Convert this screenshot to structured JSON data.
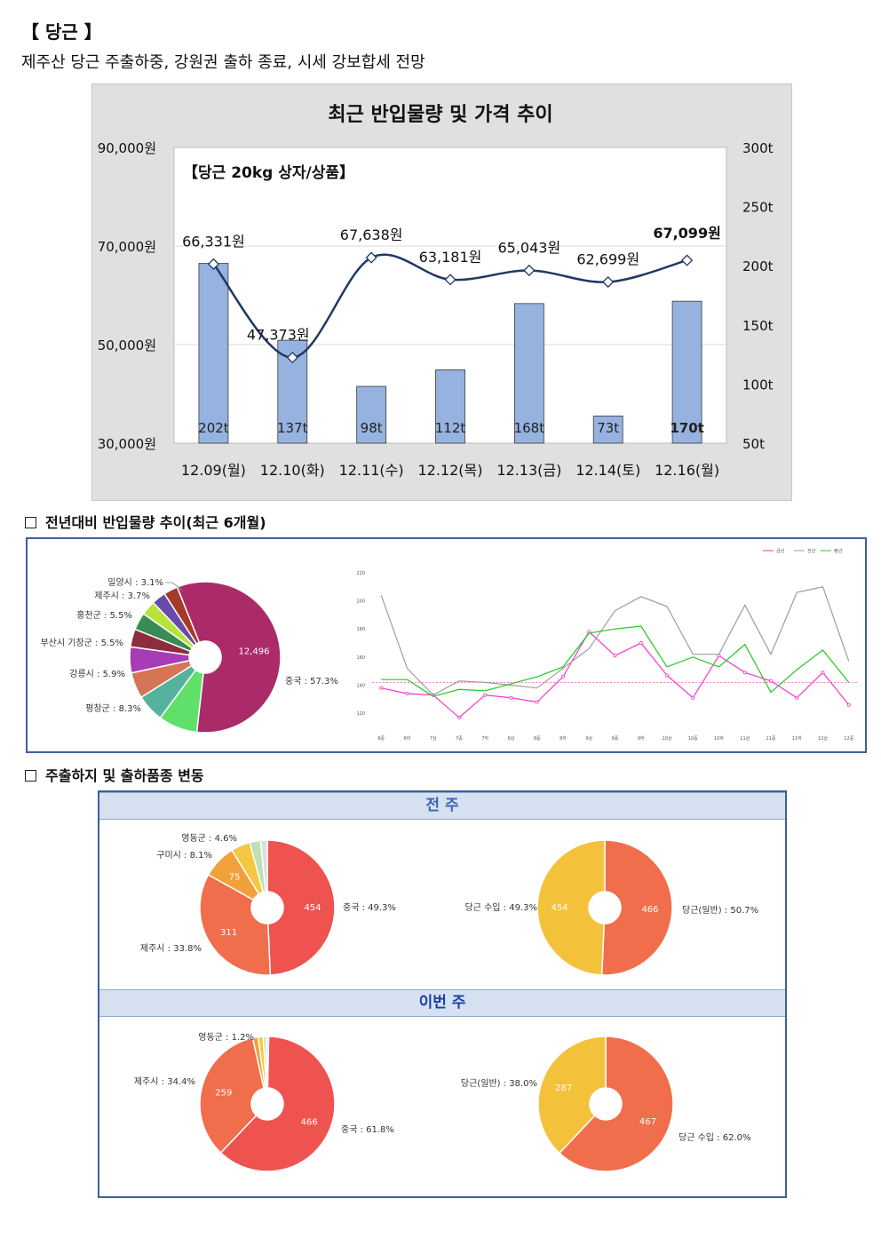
{
  "header": {
    "title": "【 당근 】",
    "subtitle": "제주산 당근 주출하중, 강원권 출하 종료, 시세 강보합세 전망"
  },
  "sections": {
    "trend": "전년대비 반입물량 추이(최근 6개월)",
    "shipping": "주출하지 및 출하품종 변동",
    "prev_week": "전 주",
    "this_week": "이번 주"
  },
  "chart_data": [
    {
      "type": "bar+line",
      "title": "최근 반입물량 및 가격 추이",
      "subtitle": "【당근 20kg 상자/상품】",
      "categories": [
        "12.09(월)",
        "12.10(화)",
        "12.11(수)",
        "12.12(목)",
        "12.13(금)",
        "12.14(토)",
        "12.16(월)"
      ],
      "series": [
        {
          "axis": "right",
          "type": "bar",
          "values": [
            202,
            137,
            98,
            112,
            168,
            73,
            170
          ],
          "labels": [
            "202t",
            "137t",
            "98t",
            "112t",
            "168t",
            "73t",
            "170t"
          ],
          "color": "#95b3de"
        },
        {
          "axis": "left",
          "type": "line",
          "values": [
            66331,
            47373,
            67638,
            63181,
            65043,
            62699,
            67099
          ],
          "labels": [
            "66,331원",
            "47,373원",
            "67,638원",
            "63,181원",
            "65,043원",
            "62,699원",
            "67,099원"
          ],
          "color": "#1f3864"
        }
      ],
      "left_axis": {
        "ticks": [
          "90,000원",
          "70,000원",
          "50,000원",
          "30,000원"
        ],
        "range": [
          30000,
          90000
        ]
      },
      "right_axis": {
        "ticks": [
          "300t",
          "250t",
          "200t",
          "150t",
          "100t",
          "50t"
        ],
        "range": [
          50,
          300
        ]
      },
      "grid": true
    },
    {
      "type": "pie",
      "slices": [
        {
          "label": "중국 : 57.3%",
          "value": 57.3,
          "inner": "12,496",
          "color": "#ab2a68"
        },
        {
          "label": "평창군 : 8.3%",
          "value": 8.3,
          "color": "#5fe06a"
        },
        {
          "label": "강릉시 : 5.9%",
          "value": 5.9,
          "color": "#55b29d"
        },
        {
          "label": "부산시 기장군 : 5.5%",
          "value": 5.5,
          "color": "#d67456"
        },
        {
          "label": "홍천군 : 5.5%",
          "value": 5.5,
          "color": "#a73db5"
        },
        {
          "label": "",
          "value": 3.8,
          "color": "#8e2c3f"
        },
        {
          "label": "제주시 : 3.7%",
          "value": 3.7,
          "color": "#3b8b54"
        },
        {
          "label": "밀양시 : 3.1%",
          "value": 3.1,
          "color": "#b6e33a"
        },
        {
          "label": "",
          "value": 3.0,
          "color": "#6a4aa8"
        },
        {
          "label": "",
          "value": 3.0,
          "color": "#a63a2a"
        }
      ]
    },
    {
      "type": "line",
      "legend": [
        "금년",
        "전년",
        "평년"
      ],
      "legend_position": "top-right",
      "categories": [
        "6중",
        "6하",
        "7상",
        "7중",
        "7하",
        "8상",
        "8중",
        "8하",
        "9상",
        "9중",
        "9하",
        "10상",
        "10중",
        "10하",
        "11상",
        "11중",
        "11하",
        "12상",
        "12중"
      ],
      "y_ticks": [
        "220",
        "200",
        "180",
        "160",
        "140",
        "120"
      ],
      "ylim": [
        110,
        225
      ],
      "series": [
        {
          "name": "금년",
          "color": "#ff33cc",
          "values": [
            138,
            134,
            133,
            117,
            133,
            131,
            128,
            146,
            178,
            161,
            170,
            147,
            131,
            161,
            149,
            143,
            131,
            149,
            126
          ]
        },
        {
          "name": "전년",
          "color": "#9e9e9e",
          "values": [
            204,
            152,
            133,
            143,
            142,
            140,
            138,
            152,
            166,
            193,
            203,
            196,
            162,
            162,
            197,
            162,
            206,
            210,
            157
          ]
        },
        {
          "name": "평년",
          "color": "#22c922",
          "values": [
            144,
            144,
            132,
            137,
            136,
            141,
            146,
            153,
            177,
            180,
            182,
            153,
            160,
            153,
            169,
            135,
            151,
            165,
            142
          ]
        }
      ],
      "reference_line": 142
    },
    {
      "type": "pie",
      "panel": "전 주",
      "slices": [
        {
          "label": "중국 : 49.3%",
          "value": 49.3,
          "inner": "454",
          "color": "#ef5350"
        },
        {
          "label": "제주시 : 33.8%",
          "value": 33.8,
          "inner": "311",
          "color": "#f06e4c"
        },
        {
          "label": "구미시 : 8.1%",
          "value": 8.1,
          "inner": "75",
          "color": "#f1a03a"
        },
        {
          "label": "영동군 : 4.6%",
          "value": 4.6,
          "color": "#f4c842"
        },
        {
          "label": "",
          "value": 2.6,
          "color": "#bfe0b2"
        },
        {
          "label": "",
          "value": 1.6,
          "color": "#dddddd"
        }
      ]
    },
    {
      "type": "pie",
      "panel": "전 주",
      "slices": [
        {
          "label": "당근(일반) : 50.7%",
          "value": 50.7,
          "inner": "466",
          "color": "#f06e4c"
        },
        {
          "label": "당근 수입 : 49.3%",
          "value": 49.3,
          "inner": "454",
          "color": "#f4c13a"
        }
      ]
    },
    {
      "type": "pie",
      "panel": "이번 주",
      "slices": [
        {
          "label": "중국 : 61.8%",
          "value": 61.8,
          "inner": "466",
          "color": "#ef5350"
        },
        {
          "label": "제주시 : 34.4%",
          "value": 34.4,
          "inner": "259",
          "color": "#f06e4c"
        },
        {
          "label": "",
          "value": 1.3,
          "color": "#f1a03a"
        },
        {
          "label": "영동군 : 1.2%",
          "value": 1.2,
          "color": "#f4c842"
        },
        {
          "label": "",
          "value": 0.7,
          "color": "#bfe0b2"
        },
        {
          "label": "",
          "value": 0.6,
          "color": "#dddddd"
        }
      ]
    },
    {
      "type": "pie",
      "panel": "이번 주",
      "slices": [
        {
          "label": "당근 수입 : 62.0%",
          "value": 62.0,
          "inner": "467",
          "color": "#f06e4c"
        },
        {
          "label": "당근(일반) : 38.0%",
          "value": 38.0,
          "inner": "287",
          "color": "#f4c13a"
        }
      ]
    }
  ]
}
